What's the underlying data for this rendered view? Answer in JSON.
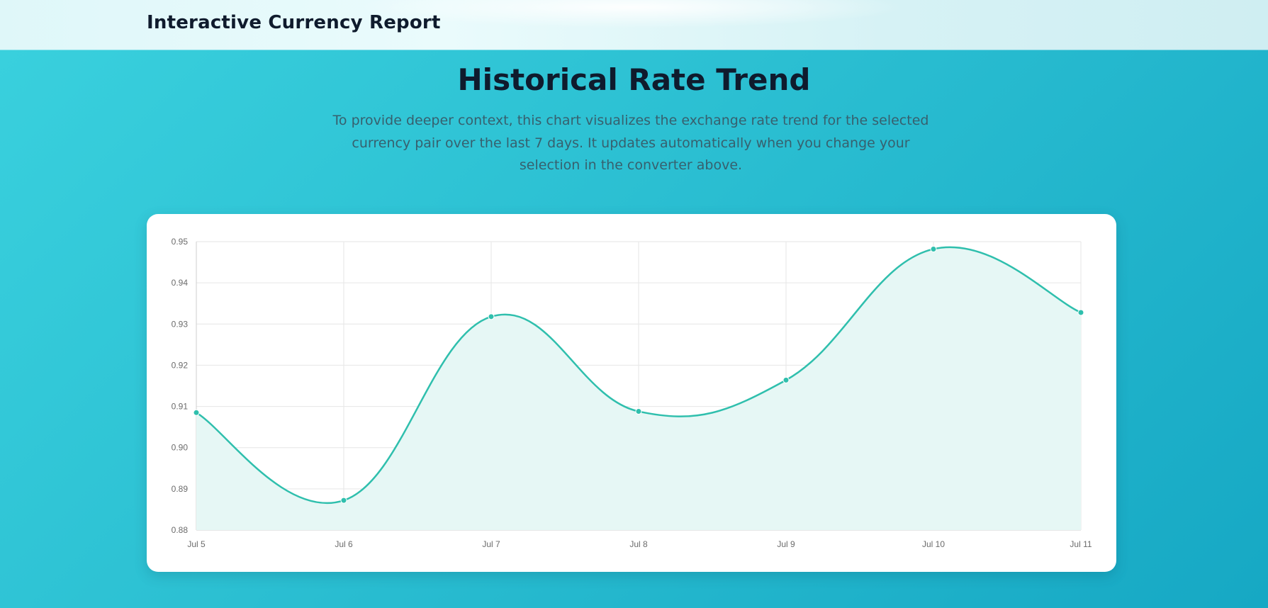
{
  "header": {
    "brand": "Interactive Currency Report"
  },
  "section": {
    "title": "Historical Rate Trend",
    "description": "To provide deeper context, this chart visualizes the exchange rate trend for the selected currency pair over the last 7 days. It updates automatically when you change your selection in the converter above."
  },
  "colors": {
    "line": "#2fbfad",
    "fill": "#e6f7f5",
    "grid": "#e6e6e6",
    "page_bg": "#2bbfd2"
  },
  "chart_data": {
    "type": "line",
    "categories": [
      "Jul 5",
      "Jul 6",
      "Jul 7",
      "Jul 8",
      "Jul 9",
      "Jul 10",
      "Jul 11"
    ],
    "values": [
      0.9085,
      0.8872,
      0.9318,
      0.9088,
      0.9164,
      0.9482,
      0.9328
    ],
    "y_ticks": [
      "0.95",
      "0.94",
      "0.93",
      "0.92",
      "0.91",
      "0.90",
      "0.89",
      "0.88"
    ],
    "ylim": [
      0.88,
      0.95
    ],
    "grid": true,
    "area_fill": true,
    "legend": "none"
  }
}
